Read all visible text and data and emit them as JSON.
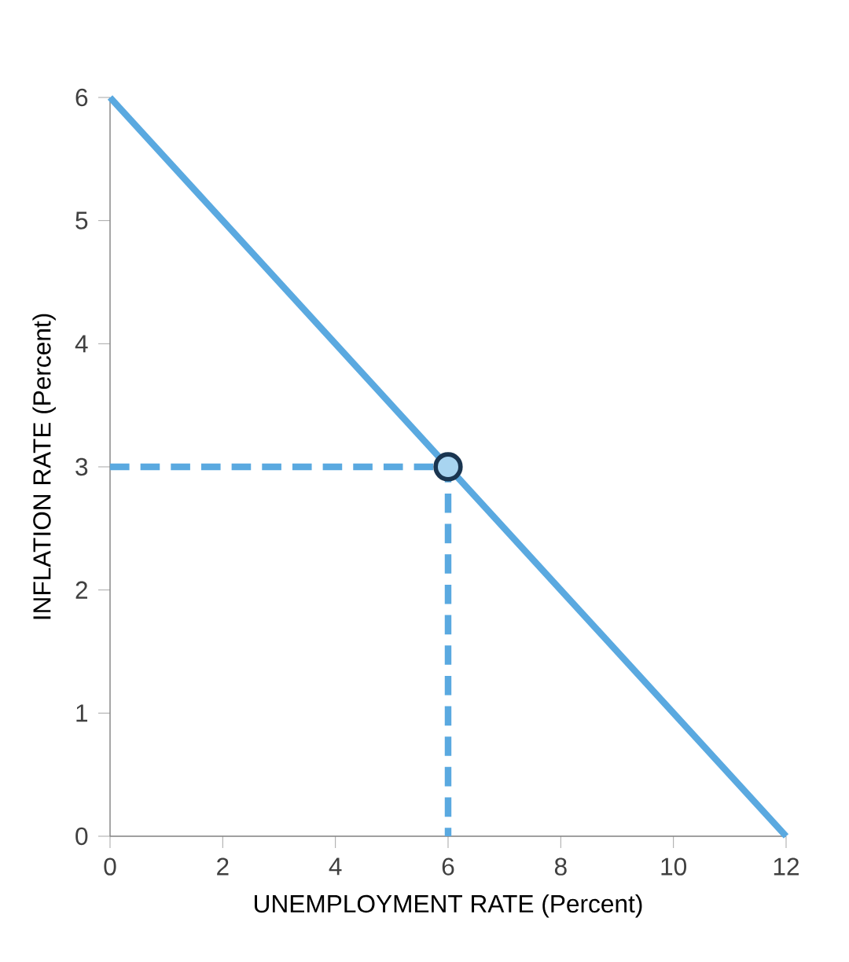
{
  "chart_data": {
    "type": "line",
    "xlabel": "UNEMPLOYMENT RATE (Percent)",
    "ylabel": "INFLATION RATE (Percent)",
    "xlim": [
      0,
      12
    ],
    "ylim": [
      0,
      6
    ],
    "xticks": [
      0,
      2,
      4,
      6,
      8,
      10,
      12
    ],
    "yticks": [
      0,
      1,
      2,
      3,
      4,
      5,
      6
    ],
    "series": [
      {
        "color": "#5aa9e0",
        "x": [
          0,
          12
        ],
        "values": [
          6,
          0
        ],
        "line_style": "solid",
        "marker": "none"
      },
      {
        "color": "#5aa9e0",
        "x": [
          0,
          6,
          6
        ],
        "values": [
          3,
          3,
          0
        ],
        "line_style": "dashed",
        "marker": "none"
      },
      {
        "type": "scatter",
        "color": "#1a3550",
        "x": [
          6
        ],
        "values": [
          3
        ],
        "marker": "circle"
      }
    ]
  }
}
